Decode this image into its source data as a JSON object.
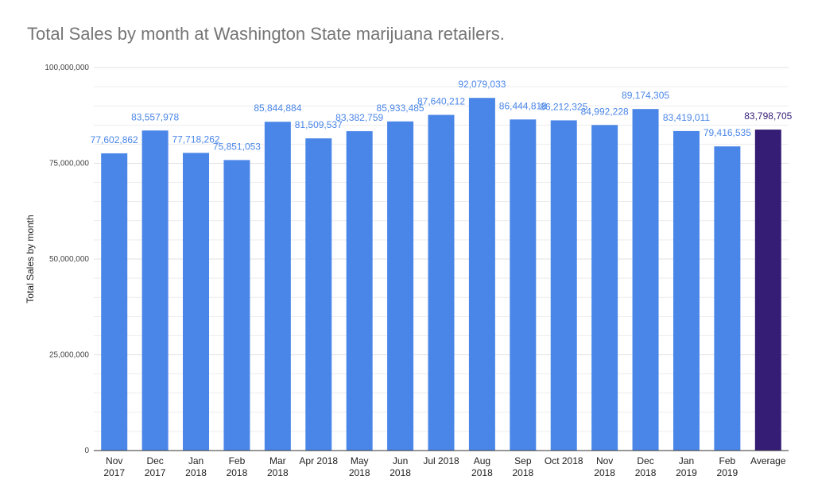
{
  "chart_data": {
    "type": "bar",
    "title": "Total Sales by month at Washington State marijuana retailers.",
    "xlabel": "",
    "ylabel": "Total Sales by month",
    "ylim": [
      0,
      100000000
    ],
    "yticks": [
      0,
      25000000,
      50000000,
      75000000,
      100000000
    ],
    "ytick_labels": [
      "0",
      "25,000,000",
      "50,000,000",
      "75,000,000",
      "100,000,000"
    ],
    "grid": true,
    "categories": [
      [
        "Nov",
        "2017"
      ],
      [
        "Dec",
        "2017"
      ],
      [
        "Jan",
        "2018"
      ],
      [
        "Feb",
        "2018"
      ],
      [
        "Mar",
        "2018"
      ],
      [
        "Apr 2018"
      ],
      [
        "May",
        "2018"
      ],
      [
        "Jun",
        "2018"
      ],
      [
        "Jul 2018"
      ],
      [
        "Aug",
        "2018"
      ],
      [
        "Sep",
        "2018"
      ],
      [
        "Oct 2018"
      ],
      [
        "Nov",
        "2018"
      ],
      [
        "Dec",
        "2018"
      ],
      [
        "Jan",
        "2019"
      ],
      [
        "Feb",
        "2019"
      ],
      [
        "Average"
      ]
    ],
    "values": [
      77602862,
      83557978,
      77718262,
      75851053,
      85844884,
      81509537,
      83382759,
      85933485,
      87640212,
      92079033,
      86444818,
      86212325,
      84992228,
      89174305,
      83419011,
      79416535,
      83798705
    ],
    "value_labels": [
      "77,602,862",
      "83,557,978",
      "77,718,262",
      "75,851,053",
      "85,844,884",
      "81,509,537",
      "83,382,759",
      "85,933,485",
      "87,640,212",
      "92,079,033",
      "86,444,818",
      "86,212,325",
      "84,992,228",
      "89,174,305",
      "83,419,011",
      "79,416,535",
      "83,798,705"
    ],
    "colors": {
      "bar": "#4a86e8",
      "highlight_bar": "#351c75",
      "label": "#4a86e8",
      "highlight_label": "#351c75",
      "grid": "#e0e0e0",
      "baseline": "#333333"
    },
    "highlight_index": 16
  }
}
